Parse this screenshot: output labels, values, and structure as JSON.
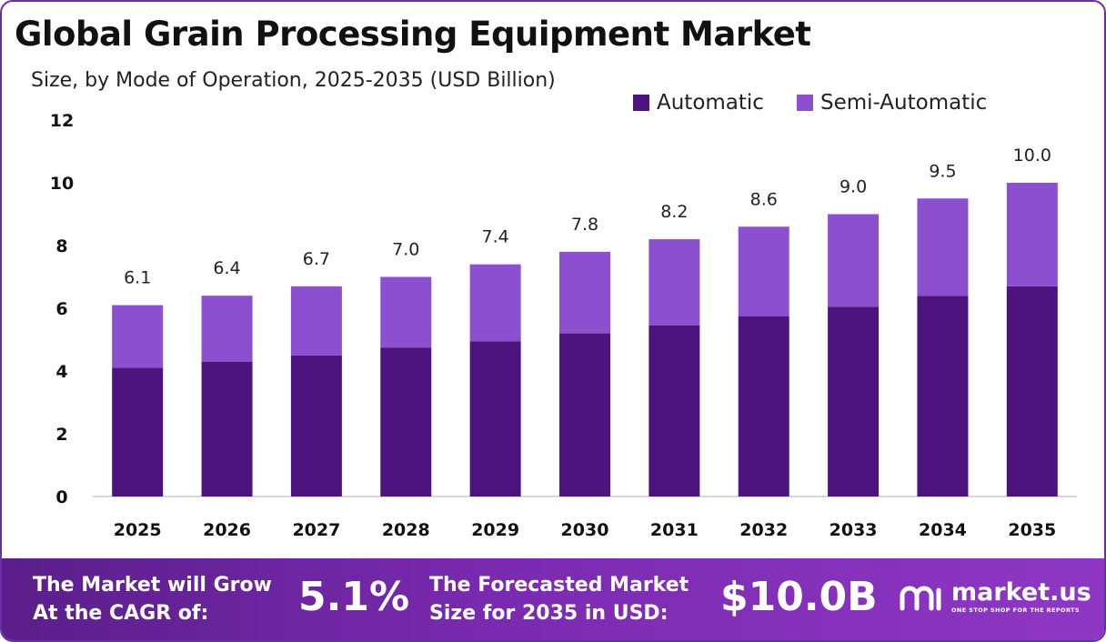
{
  "header": {
    "title": "Global Grain Processing Equipment Market",
    "subtitle": "Size, by Mode of Operation, 2025-2035 (USD Billion)"
  },
  "colors": {
    "automatic": "#4d1480",
    "semi_automatic": "#8b4fd0",
    "frame": "#6a2fa8"
  },
  "chart_data": {
    "type": "bar",
    "stacked": true,
    "categories": [
      "2025",
      "2026",
      "2027",
      "2028",
      "2029",
      "2030",
      "2031",
      "2032",
      "2033",
      "2034",
      "2035"
    ],
    "series": [
      {
        "name": "Automatic",
        "values": [
          4.1,
          4.3,
          4.5,
          4.75,
          4.95,
          5.2,
          5.45,
          5.75,
          6.05,
          6.4,
          6.7
        ]
      },
      {
        "name": "Semi-Automatic",
        "values": [
          2.0,
          2.1,
          2.2,
          2.25,
          2.45,
          2.6,
          2.75,
          2.85,
          2.95,
          3.1,
          3.3
        ]
      }
    ],
    "totals_labels": [
      "6.1",
      "6.4",
      "6.7",
      "7.0",
      "7.4",
      "7.8",
      "8.2",
      "8.6",
      "9.0",
      "9.5",
      "10.0"
    ],
    "ylim": [
      0,
      12
    ],
    "yticks": [
      0,
      2,
      4,
      6,
      8,
      10,
      12
    ],
    "grid": false,
    "legend_position": "top-right"
  },
  "footer": {
    "cagr_text_line1": "The Market will Grow",
    "cagr_text_line2": "At the CAGR of:",
    "cagr_value": "5.1%",
    "forecast_text_line1": "The Forecasted Market",
    "forecast_text_line2": "Size for 2035 in USD:",
    "forecast_value": "$10.0B",
    "logo_name": "market.us",
    "logo_tagline": "ONE STOP SHOP FOR THE REPORTS"
  }
}
